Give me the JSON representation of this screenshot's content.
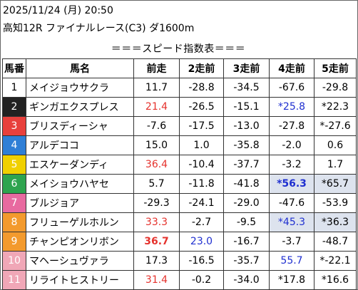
{
  "header": {
    "datetime": "2025/11/24 (月) 20:50",
    "race": "高知12R ファイナルレース(C3) ダ1600m"
  },
  "table_title": "＝＝＝スピード指数表＝＝＝",
  "columns": [
    "馬番",
    "馬名",
    "前走",
    "2走前",
    "3走前",
    "4走前",
    "5走前"
  ],
  "colors": {
    "red": "#e5322d",
    "blue": "#1f2fd0",
    "highlight": "#dde3ee"
  },
  "rows": [
    {
      "no": "1",
      "name": "メイジョウサクラ",
      "vals": [
        "11.7",
        "-28.8",
        "-34.5",
        "-67.6",
        "-29.8"
      ]
    },
    {
      "no": "2",
      "name": "ギンガエクスプレス",
      "vals": [
        "21.4",
        "-26.5",
        "-15.1",
        "*25.8",
        "*22.3"
      ]
    },
    {
      "no": "3",
      "name": "ブリスディーシャ",
      "vals": [
        "-7.6",
        "-17.5",
        "-13.0",
        "-27.8",
        "*-27.6"
      ]
    },
    {
      "no": "4",
      "name": "アルデココ",
      "vals": [
        "15.0",
        "1.0",
        "-35.8",
        "-2.0",
        "0.6"
      ]
    },
    {
      "no": "5",
      "name": "エスケーダンディ",
      "vals": [
        "36.4",
        "-10.4",
        "-37.7",
        "-3.2",
        "1.7"
      ]
    },
    {
      "no": "6",
      "name": "メイショウハヤセ",
      "vals": [
        "5.7",
        "-11.8",
        "-41.8",
        "*56.3",
        "*65.7"
      ]
    },
    {
      "no": "7",
      "name": "ブルジョア",
      "vals": [
        "-29.3",
        "-24.1",
        "-29.0",
        "-47.6",
        "-53.9"
      ]
    },
    {
      "no": "8",
      "name": "フリューゲルホルン",
      "vals": [
        "33.3",
        "-2.7",
        "-9.5",
        "*45.3",
        "*36.3"
      ]
    },
    {
      "no": "9",
      "name": "チャンピオンリボン",
      "vals": [
        "36.7",
        "23.0",
        "-16.7",
        "-3.7",
        "-48.7"
      ]
    },
    {
      "no": "10",
      "name": "マヘーシュヴァラ",
      "vals": [
        "17.3",
        "-16.5",
        "-35.7",
        "55.7",
        "*-22.1"
      ]
    },
    {
      "no": "11",
      "name": "リライトヒストリー",
      "vals": [
        "31.4",
        "-0.2",
        "-34.0",
        "*17.8",
        "*16.6"
      ]
    }
  ]
}
